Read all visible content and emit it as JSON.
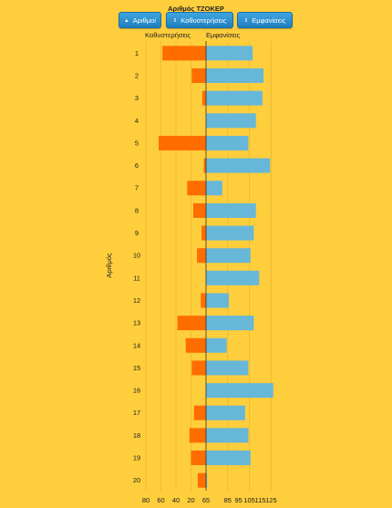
{
  "chart_data": {
    "type": "bar",
    "title": "Αριθμός ΤΖΟΚΕΡ",
    "ylabel": "Αριθμός",
    "categories": [
      "1",
      "2",
      "3",
      "4",
      "5",
      "6",
      "7",
      "8",
      "9",
      "10",
      "11",
      "12",
      "13",
      "14",
      "15",
      "16",
      "17",
      "18",
      "19",
      "20"
    ],
    "series": [
      {
        "name": "Καθυστερήσεις",
        "color": "#FF6D00",
        "values": [
          58,
          19,
          5,
          0,
          63,
          3,
          25,
          17,
          6,
          12,
          0,
          7,
          38,
          27,
          19,
          0,
          16,
          22,
          20,
          11
        ]
      },
      {
        "name": "Εμφανίσεις",
        "color": "#67B7D9",
        "values": [
          108,
          118,
          117,
          111,
          104,
          124,
          80,
          111,
          109,
          106,
          114,
          86,
          109,
          84,
          104,
          127,
          101,
          104,
          106,
          66
        ]
      }
    ],
    "left_axis": {
      "ticks": [
        "80",
        "60",
        "40",
        "20"
      ],
      "range": [
        0,
        80
      ]
    },
    "right_axis": {
      "ticks": [
        "65",
        "85",
        "105",
        "125"
      ],
      "minor_ticks": [
        "95",
        "115"
      ],
      "range": [
        65,
        135
      ]
    }
  },
  "buttons": [
    {
      "label": "Αριθμοί",
      "arrow": "▲"
    },
    {
      "label": "Καθυστερήσεις",
      "arrow": "⇕"
    },
    {
      "label": "Εμφανίσεις",
      "arrow": "⇕"
    }
  ]
}
